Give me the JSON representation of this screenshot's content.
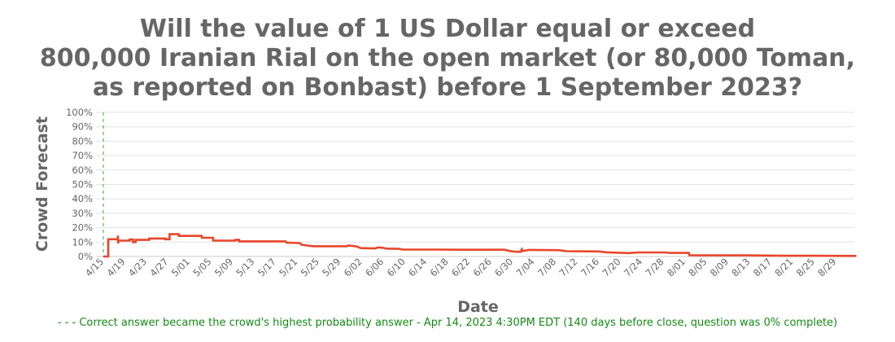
{
  "title_lines": [
    "Will the value of 1 US Dollar equal or exceed",
    "800,000 Iranian Rial on the open market (or 80,000 Toman,",
    "as reported on Bonbast) before 1 September 2023?"
  ],
  "colors": {
    "line": "#e8462a",
    "grid": "#e3e3e3",
    "axis_text": "#666666",
    "marker": "#4a9a4a",
    "footnote": "#138a13"
  },
  "footnote": "- - - Correct answer became the crowd's highest probability answer - Apr 14, 2023 4:30PM EDT (140 days before close, question was 0% complete)",
  "chart_data": {
    "type": "line",
    "title": "Will the value of 1 US Dollar equal or exceed 800,000 Iranian Rial on the open market (or 80,000 Toman, as reported on Bonbast) before 1 September 2023?",
    "xlabel": "Date",
    "ylabel": "Crowd Forecast",
    "ylim": [
      0,
      100
    ],
    "y_ticks": [
      "0%",
      "10%",
      "20%",
      "30%",
      "40%",
      "50%",
      "60%",
      "70%",
      "80%",
      "90%",
      "100%"
    ],
    "x_ticks": [
      "4/15",
      "4/19",
      "4/23",
      "4/27",
      "5/01",
      "5/05",
      "5/09",
      "5/13",
      "5/17",
      "5/21",
      "5/25",
      "5/29",
      "6/02",
      "6/06",
      "6/10",
      "6/14",
      "6/18",
      "6/22",
      "6/26",
      "6/30",
      "7/04",
      "7/08",
      "7/12",
      "7/16",
      "7/20",
      "7/24",
      "7/28",
      "8/01",
      "8/05",
      "8/09",
      "8/13",
      "8/17",
      "8/21",
      "8/25",
      "8/29"
    ],
    "grid": true,
    "legend": "none",
    "marker_line": {
      "date": "Apr 14, 2023",
      "day_offset": 0,
      "style": "dashed",
      "color": "#4a9a4a"
    },
    "series": [
      {
        "name": "Crowd Forecast",
        "step": true,
        "points": [
          {
            "day": 0.0,
            "value": 0
          },
          {
            "day": 0.9,
            "value": 0
          },
          {
            "day": 0.9,
            "value": 12
          },
          {
            "day": 2.7,
            "value": 12
          },
          {
            "day": 2.7,
            "value": 14.5
          },
          {
            "day": 2.75,
            "value": 9
          },
          {
            "day": 2.8,
            "value": 11
          },
          {
            "day": 4.9,
            "value": 11
          },
          {
            "day": 4.9,
            "value": 11.8
          },
          {
            "day": 5.5,
            "value": 11.8
          },
          {
            "day": 5.5,
            "value": 10
          },
          {
            "day": 6.0,
            "value": 10
          },
          {
            "day": 6.0,
            "value": 11.5
          },
          {
            "day": 8.5,
            "value": 11.5
          },
          {
            "day": 8.5,
            "value": 12.5
          },
          {
            "day": 11.5,
            "value": 12.5
          },
          {
            "day": 11.5,
            "value": 12
          },
          {
            "day": 12.3,
            "value": 12
          },
          {
            "day": 12.3,
            "value": 15.5
          },
          {
            "day": 14.0,
            "value": 15.5
          },
          {
            "day": 14.0,
            "value": 14.3
          },
          {
            "day": 18.2,
            "value": 14.3
          },
          {
            "day": 18.2,
            "value": 15
          },
          {
            "day": 18.3,
            "value": 13
          },
          {
            "day": 20.4,
            "value": 13
          },
          {
            "day": 20.4,
            "value": 11
          },
          {
            "day": 24.5,
            "value": 11
          },
          {
            "day": 24.5,
            "value": 11.5
          },
          {
            "day": 25.2,
            "value": 11.5
          },
          {
            "day": 25.2,
            "value": 10.5
          },
          {
            "day": 33.8,
            "value": 10.5
          },
          {
            "day": 34.0,
            "value": 9.6
          },
          {
            "day": 36.5,
            "value": 9.3
          },
          {
            "day": 36.8,
            "value": 8.2
          },
          {
            "day": 37.8,
            "value": 7.6
          },
          {
            "day": 39.0,
            "value": 7.1
          },
          {
            "day": 45.2,
            "value": 7.1
          },
          {
            "day": 45.5,
            "value": 7.6
          },
          {
            "day": 47.0,
            "value": 7.0
          },
          {
            "day": 47.8,
            "value": 5.8
          },
          {
            "day": 50.5,
            "value": 5.6
          },
          {
            "day": 51.0,
            "value": 6.3
          },
          {
            "day": 52.0,
            "value": 6.0
          },
          {
            "day": 52.5,
            "value": 5.5
          },
          {
            "day": 55.0,
            "value": 5.3
          },
          {
            "day": 55.5,
            "value": 4.8
          },
          {
            "day": 62.0,
            "value": 4.8
          },
          {
            "day": 66.0,
            "value": 4.7
          },
          {
            "day": 74.5,
            "value": 4.7
          },
          {
            "day": 75.5,
            "value": 3.8
          },
          {
            "day": 76.5,
            "value": 3.3
          },
          {
            "day": 77.5,
            "value": 3.3
          },
          {
            "day": 77.7,
            "value": 5.0
          },
          {
            "day": 77.9,
            "value": 3.8
          },
          {
            "day": 79.0,
            "value": 4.6
          },
          {
            "day": 84.5,
            "value": 4.4
          },
          {
            "day": 86.0,
            "value": 3.7
          },
          {
            "day": 92.0,
            "value": 3.5
          },
          {
            "day": 93.5,
            "value": 2.9
          },
          {
            "day": 97.5,
            "value": 2.4
          },
          {
            "day": 99.5,
            "value": 2.8
          },
          {
            "day": 104.5,
            "value": 2.8
          },
          {
            "day": 105.0,
            "value": 2.5
          },
          {
            "day": 108.7,
            "value": 2.5
          },
          {
            "day": 108.8,
            "value": 0.9
          },
          {
            "day": 119.0,
            "value": 0.8
          },
          {
            "day": 126.0,
            "value": 0.5
          },
          {
            "day": 132.0,
            "value": 0.5
          },
          {
            "day": 139.8,
            "value": 0.4
          }
        ]
      }
    ]
  }
}
